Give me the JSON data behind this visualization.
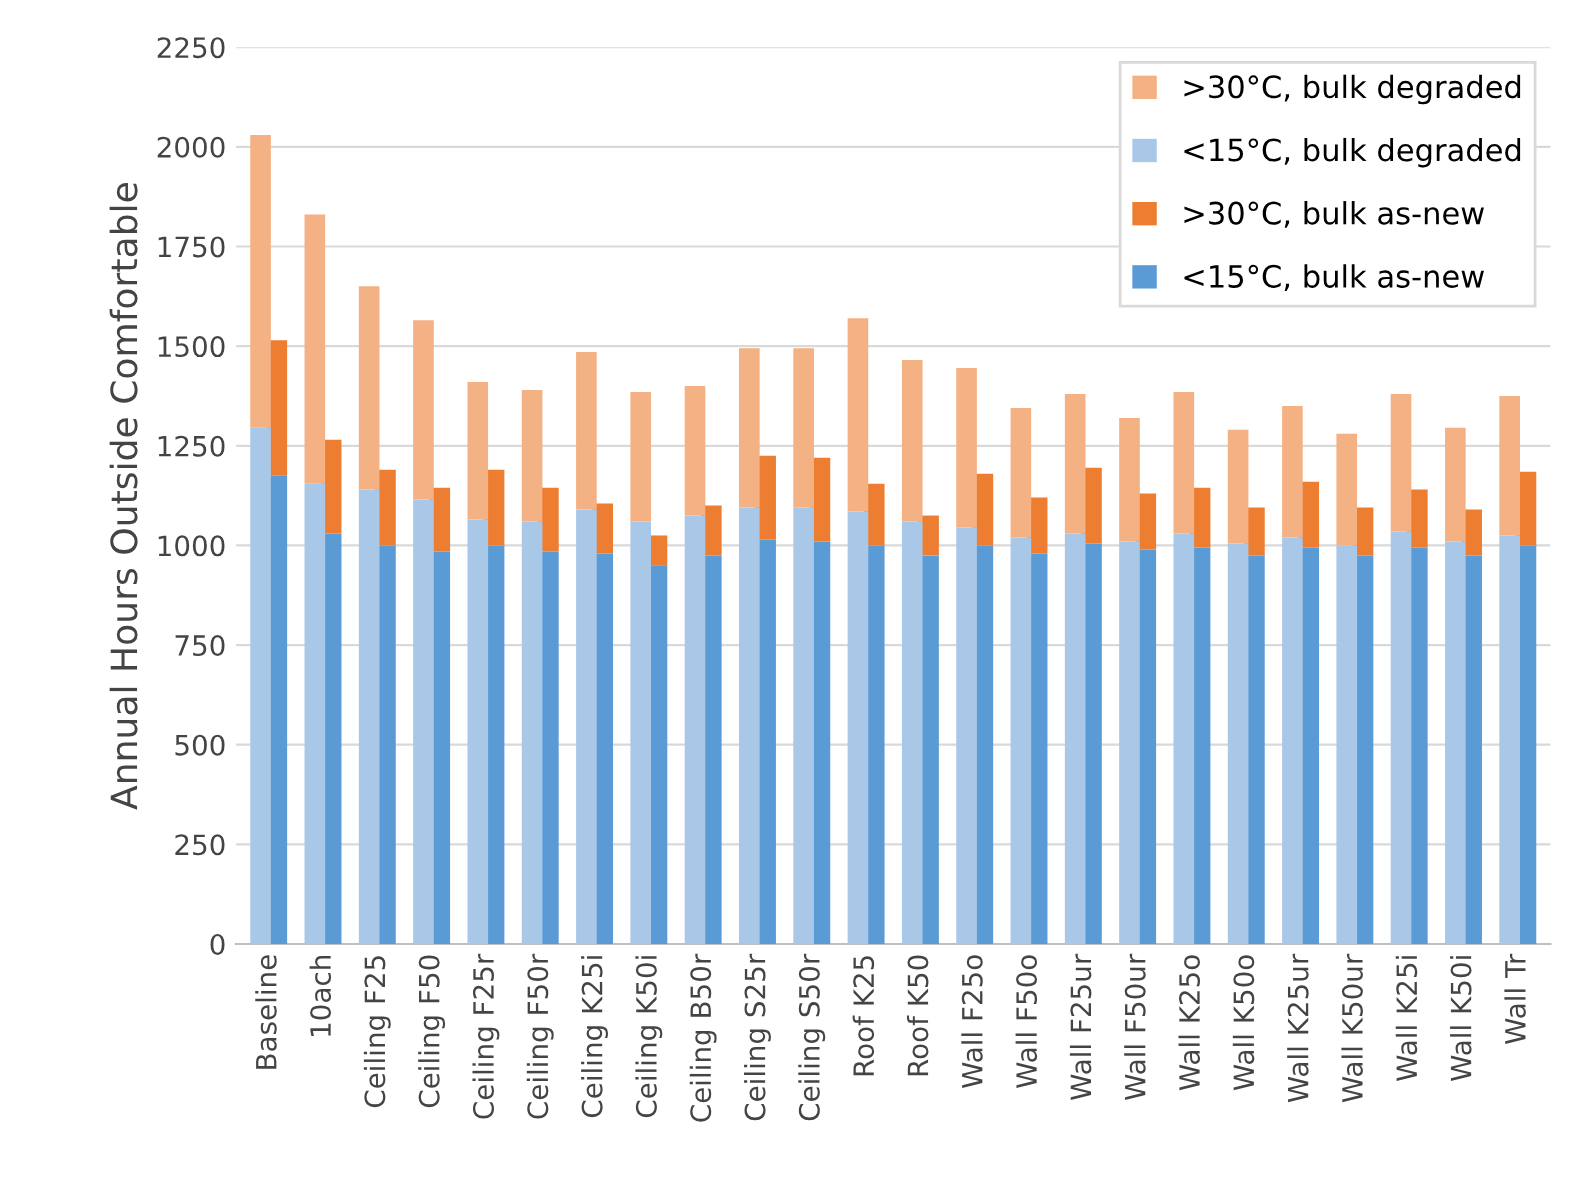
{
  "chart_data": {
    "type": "bar",
    "ylabel": "Annual Hours Outside Comfortable",
    "categories": [
      "Baseline",
      "10ach",
      "Ceiling F25",
      "Ceiling F50",
      "Ceiling F25r",
      "Ceiling F50r",
      "Ceiling K25i",
      "Ceiling K50i",
      "Ceiling B50r",
      "Ceiling S25r",
      "Ceiling S50r",
      "Roof K25",
      "Roof K50",
      "Wall F25o",
      "Wall F50o",
      "Wall F25ur",
      "Wall F50ur",
      "Wall K25o",
      "Wall K50o",
      "Wall K25ur",
      "Wall K50ur",
      "Wall K25i",
      "Wall K50i",
      "Wall Tr"
    ],
    "series": [
      {
        "name": ">30°C, bulk degraded",
        "color": "#f4b183",
        "values": [
          735,
          675,
          510,
          450,
          345,
          330,
          395,
          325,
          325,
          400,
          400,
          485,
          405,
          400,
          325,
          350,
          310,
          355,
          285,
          330,
          280,
          345,
          285,
          350
        ],
        "base": [
          1295,
          1155,
          1140,
          1115,
          1065,
          1060,
          1090,
          1060,
          1075,
          1095,
          1095,
          1085,
          1060,
          1045,
          1020,
          1030,
          1010,
          1030,
          1005,
          1020,
          1000,
          1035,
          1010,
          1025
        ]
      },
      {
        "name": "<15°C, bulk degraded",
        "color": "#a9c8e8",
        "values": [
          1295,
          1155,
          1140,
          1115,
          1065,
          1060,
          1090,
          1060,
          1075,
          1095,
          1095,
          1085,
          1060,
          1045,
          1020,
          1030,
          1010,
          1030,
          1005,
          1020,
          1000,
          1035,
          1010,
          1025
        ]
      },
      {
        "name": ">30°C, bulk as-new",
        "color": "#ed7d31",
        "values": [
          340,
          235,
          190,
          160,
          190,
          160,
          125,
          75,
          125,
          210,
          210,
          155,
          100,
          180,
          140,
          190,
          140,
          150,
          120,
          165,
          120,
          145,
          115,
          185
        ],
        "base": [
          1175,
          1030,
          1000,
          985,
          1000,
          985,
          980,
          950,
          975,
          1015,
          1010,
          1000,
          975,
          1000,
          980,
          1005,
          990,
          995,
          975,
          995,
          975,
          995,
          975,
          1000
        ]
      },
      {
        "name": "<15°C, bulk as-new",
        "color": "#5b9bd5",
        "values": [
          1175,
          1030,
          1000,
          985,
          1000,
          985,
          980,
          950,
          975,
          1015,
          1010,
          1000,
          975,
          1000,
          980,
          1005,
          990,
          995,
          975,
          995,
          975,
          995,
          975,
          1000
        ]
      }
    ],
    "ylim": [
      0,
      2250
    ],
    "yticks": [
      0,
      250,
      500,
      750,
      1000,
      1250,
      1500,
      1750,
      2000,
      2250
    ],
    "grid": "y",
    "legend": "top right"
  }
}
